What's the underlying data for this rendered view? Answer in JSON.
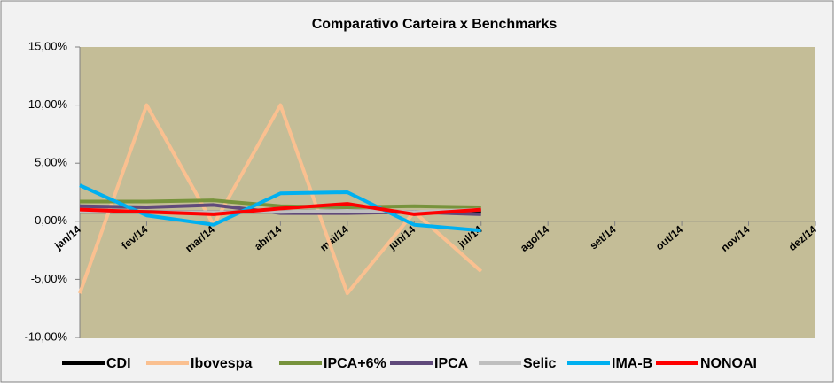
{
  "chart_data": {
    "type": "line",
    "title": "Comparativo Carteira x Benchmarks",
    "categories": [
      "jan/14",
      "fev/14",
      "mar/14",
      "abr/14",
      "mai/14",
      "jun/14",
      "jul/14",
      "ago/14",
      "set/14",
      "out/14",
      "nov/14",
      "dez/14"
    ],
    "series": [
      {
        "name": "CDI",
        "color": "#000000",
        "values": [
          0.8,
          0.8,
          0.8,
          0.8,
          0.9,
          0.8,
          0.9,
          null,
          null,
          null,
          null,
          null
        ]
      },
      {
        "name": "Ibovespa",
        "color": "#fac090",
        "values": [
          -6.2,
          10.0,
          -0.3,
          10.0,
          -6.2,
          0.8,
          -4.3,
          null,
          null,
          null,
          null,
          null
        ]
      },
      {
        "name": "IPCA+6%",
        "color": "#77933c",
        "values": [
          1.7,
          1.7,
          1.8,
          1.3,
          1.2,
          1.3,
          1.2,
          null,
          null,
          null,
          null,
          null
        ]
      },
      {
        "name": "IPCA",
        "color": "#604a7b",
        "values": [
          1.3,
          1.2,
          1.4,
          0.7,
          0.7,
          0.8,
          0.6,
          null,
          null,
          null,
          null,
          null
        ]
      },
      {
        "name": "Selic",
        "color": "#bfbfbf",
        "values": [
          0.8,
          0.8,
          0.8,
          0.8,
          0.9,
          0.8,
          1.0,
          null,
          null,
          null,
          null,
          null
        ]
      },
      {
        "name": "IMA-B",
        "color": "#00b0f0",
        "values": [
          3.1,
          0.5,
          -0.3,
          2.4,
          2.5,
          -0.3,
          -0.8,
          null,
          null,
          null,
          null,
          null
        ]
      },
      {
        "name": "NONOAI",
        "color": "#ff0000",
        "values": [
          1.0,
          0.8,
          0.6,
          1.1,
          1.5,
          0.6,
          1.0,
          null,
          null,
          null,
          null,
          null
        ]
      }
    ],
    "ylim": [
      -10,
      15
    ],
    "yticks": [
      {
        "value": -10,
        "label": "-10,00%"
      },
      {
        "value": -5,
        "label": "-5,00%"
      },
      {
        "value": 0,
        "label": "0,00%"
      },
      {
        "value": 5,
        "label": "5,00%"
      },
      {
        "value": 10,
        "label": "10,00%"
      },
      {
        "value": 15,
        "label": "15,00%"
      }
    ],
    "grid": false,
    "legend": "bottom",
    "plot_background": "#c4bd97"
  }
}
